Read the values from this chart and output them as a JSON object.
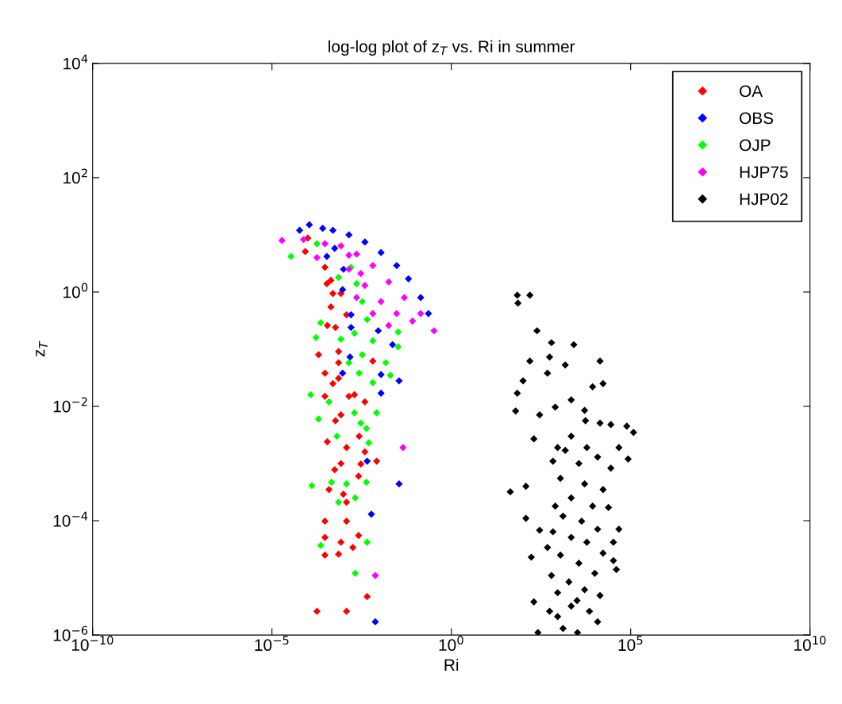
{
  "chart_data": {
    "type": "scatter",
    "title": "log-log plot of z$_{T}$ vs. Ri in summer",
    "xlabel": "Ri",
    "ylabel": "z$_{T}$",
    "log": "xy",
    "marker": "diamond",
    "grid": false,
    "legend": "top right",
    "xlim": [
      1e-10,
      10000000000.0
    ],
    "ylim": [
      1e-06,
      10000.0
    ],
    "xticks": [
      {
        "value": 1e-10,
        "label": "10$^{−10}$"
      },
      {
        "value": 1e-05,
        "label": "10$^{−5}$"
      },
      {
        "value": 1,
        "label": "10$^{0}$"
      },
      {
        "value": 100000.0,
        "label": "10$^{5}$"
      },
      {
        "value": 10000000000.0,
        "label": "10$^{10}$"
      }
    ],
    "yticks": [
      {
        "value": 1e-06,
        "label": "10$^{−6}$"
      },
      {
        "value": 0.0001,
        "label": "10$^{−4}$"
      },
      {
        "value": 0.01,
        "label": "10$^{−2}$"
      },
      {
        "value": 1,
        "label": "10$^{0}$"
      },
      {
        "value": 100,
        "label": "10$^{2}$"
      },
      {
        "value": 10000.0,
        "label": "10$^{4}$"
      }
    ],
    "series": [
      {
        "name": "OA",
        "color": "#ff0000",
        "x": [
          8.5e-05,
          0.0003,
          0.00034,
          0.00044,
          0.00059,
          0.0012,
          0.0002,
          0.0003,
          0.00072,
          0.0003,
          0.0014,
          0.0039,
          0.00084,
          0.00035,
          0.0012,
          0.0027,
          0.00084,
          0.003,
          0.0083,
          0.00056,
          0.0026,
          0.00039,
          0.00098,
          0.0012,
          0.0003,
          0.0012,
          0.0003,
          0.00084,
          0.0026,
          0.0018,
          0.0003,
          0.00072,
          0.0045,
          0.00018,
          0.0012,
          0.0001,
          0.0005,
          0.00072,
          0.002,
          0.0065,
          0.00059,
          0.0039,
          0.00044,
          0.00084,
          0.00035,
          0.00072,
          0.0005
        ],
        "values": [
          5.1,
          2.7,
          1.4,
          0.55,
          0.24,
          0.4,
          0.08,
          0.038,
          0.031,
          0.015,
          0.015,
          0.012,
          0.0071,
          0.0024,
          0.0019,
          0.003,
          0.001,
          0.00098,
          0.0011,
          0.00078,
          0.0006,
          0.00035,
          0.00029,
          0.00021,
          9.8e-05,
          9.8e-05,
          5.1e-05,
          4.2e-05,
          5.5e-05,
          3.4e-05,
          2.5e-05,
          2.6e-05,
          4.7e-06,
          2.6e-06,
          2.6e-06,
          8.8,
          0.94,
          0.091,
          0.016,
          0.062,
          0.0056,
          0.0016,
          1.6,
          0.94,
          0.26,
          0.058,
          0.025
        ]
      },
      {
        "name": "OBS",
        "color": "#0000ff",
        "x": [
          5.9e-05,
          0.00011,
          0.00026,
          0.0005,
          0.0014,
          0.0039,
          0.011,
          0.03,
          0.064,
          0.14,
          0.23,
          0.00093,
          0.0016,
          0.0016,
          0.0092,
          0.023,
          0.0015,
          0.011,
          0.035,
          0.011,
          0.00093,
          0.0045,
          0.035,
          0.0059,
          0.0076,
          0.00034,
          0.00056,
          0.00099
        ],
        "values": [
          12,
          15,
          13,
          12,
          10,
          7.5,
          4.9,
          2.9,
          1.7,
          0.8,
          0.42,
          1.1,
          0.4,
          0.24,
          0.21,
          0.12,
          0.073,
          0.036,
          0.028,
          0.017,
          0.038,
          0.0011,
          0.00044,
          0.00013,
          1.7e-06,
          4.2,
          5.8,
          2.5
        ]
      },
      {
        "name": "OJP",
        "color": "#00ff00",
        "x": [
          3.4e-05,
          0.00018,
          0.00023,
          0.00017,
          0.00012,
          0.0002,
          0.00013,
          0.00023,
          0.0021,
          0.0045,
          0.0043,
          0.0021,
          0.00072,
          0.00046,
          0.0012,
          0.005,
          0.0043,
          0.00065,
          0.003,
          0.0083,
          0.002,
          0.00039,
          0.02,
          0.0065,
          0.015,
          0.033,
          0.033,
          0.0016,
          0.0023,
          0.0033,
          0.0045,
          0.002,
          0.0065,
          0.0014,
          0.0027,
          0.0033,
          0.00084,
          0.00072
        ],
        "values": [
          4.2,
          7.0,
          0.29,
          0.16,
          0.016,
          0.006,
          0.00041,
          3.7e-05,
          1.2e-05,
          4.2e-05,
          0.00047,
          0.00025,
          0.00021,
          0.00047,
          0.00044,
          0.0023,
          0.0041,
          0.003,
          0.0051,
          0.0077,
          0.0077,
          0.012,
          0.035,
          0.026,
          0.058,
          0.11,
          0.2,
          2.7,
          1.4,
          0.68,
          0.33,
          0.19,
          0.14,
          0.058,
          0.038,
          0.08,
          0.15,
          1.8
        ]
      },
      {
        "name": "HJP75",
        "color": "#ff00ff",
        "x": [
          1.9e-05,
          7.6e-05,
          0.00018,
          0.0003,
          0.00084,
          0.0023,
          0.0065,
          0.018,
          0.049,
          0.14,
          0.33,
          0.0014,
          0.0039,
          0.011,
          0.03,
          0.083,
          0.0065,
          0.0023,
          0.018,
          0.0014,
          0.003,
          0.045,
          0.0076
        ],
        "values": [
          8.0,
          8.3,
          4.0,
          7.0,
          6.4,
          4.6,
          2.9,
          1.5,
          0.8,
          0.42,
          0.21,
          2.5,
          1.3,
          0.68,
          0.42,
          0.31,
          0.42,
          0.8,
          0.26,
          4.4,
          2.1,
          0.0019,
          1.1e-05
        ]
      },
      {
        "name": "HJP02",
        "color": "#000000",
        "x": [
          69,
          72,
          155,
          245,
          620,
          2600.0,
          155,
          550,
          1500.0,
          14000.0,
          100,
          480,
          69,
          62,
          290,
          790,
          2200.0,
          5200.0,
          8700.0,
          17000.0,
          200,
          5500.0,
          14000.0,
          28000.0,
          120000.0,
          78000.0,
          44,
          120,
          680,
          85000.0,
          120,
          290,
          170,
          480,
          620,
          200,
          260,
          3300.0,
          33000.0,
          40000.0,
          12000.0,
          920,
          1500.0,
          3600.0,
          12000.0,
          28000.0,
          1100.0,
          5200.0,
          17000.0,
          2200.0,
          8700.0,
          24000.0,
          1300.0,
          4300.0,
          12000.0,
          2200.0,
          6000.0,
          17000.0,
          1100.0,
          3600.0,
          10000.0,
          1900.0,
          5200.0,
          920,
          14000.0,
          2200.0,
          7100.0,
          550,
          1300.0,
          3200.0,
          790,
          680,
          47000.0,
          33000.0,
          2200.0,
          920,
          47000.0,
          6000.0
        ],
        "values": [
          0.88,
          0.64,
          0.88,
          0.21,
          0.13,
          0.12,
          0.062,
          0.073,
          0.053,
          0.062,
          0.028,
          0.038,
          0.017,
          0.0083,
          0.0071,
          0.0097,
          0.013,
          0.0085,
          0.022,
          0.025,
          0.0027,
          0.0056,
          0.0051,
          0.0048,
          0.0035,
          0.0045,
          0.00032,
          0.0004,
          0.0011,
          0.0012,
          0.00011,
          6.8e-05,
          2.3e-05,
          3.4e-05,
          1.1e-05,
          3.8e-06,
          1.1e-06,
          1.1e-06,
          4.2e-05,
          1.4e-05,
          1.7e-06,
          2.1e-06,
          0.0017,
          0.001,
          0.0013,
          0.00083,
          0.00055,
          0.00044,
          0.00035,
          0.00025,
          0.00018,
          0.00017,
          0.00012,
          9.8e-05,
          7.1e-05,
          5.1e-05,
          4.2e-05,
          2.7e-05,
          2.5e-05,
          1.8e-05,
          1.2e-05,
          8.5e-06,
          6.2e-06,
          5.5e-06,
          4.9e-06,
          3.2e-06,
          2.6e-06,
          2.6e-06,
          1.3e-06,
          4e-06,
          0.00018,
          6.4e-05,
          7.1e-05,
          2e-05,
          0.003,
          0.0019,
          0.0019,
          0.0019
        ]
      }
    ]
  }
}
